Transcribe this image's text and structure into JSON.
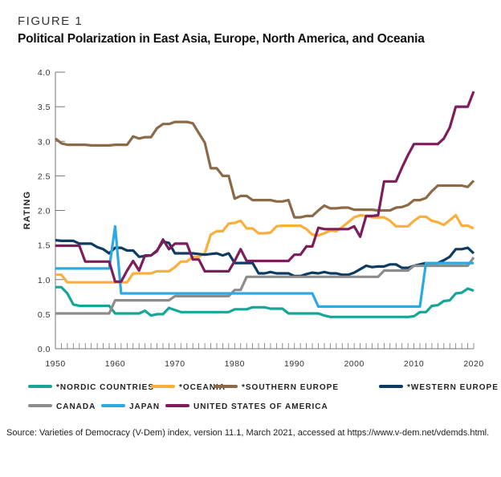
{
  "figure_label": "FIGURE 1",
  "chart_data": {
    "type": "line",
    "title": "Political Polarization in East Asia, Europe, North America, and Oceania",
    "xlabel": "",
    "ylabel": "RATING",
    "xlim": [
      1950,
      2020
    ],
    "ylim": [
      0,
      4
    ],
    "x_ticks": [
      1950,
      1960,
      1970,
      1980,
      1990,
      2000,
      2010,
      2020
    ],
    "x_tick_labels": [
      "1950",
      "1960",
      "1970",
      "1980",
      "1990",
      "2000",
      "2010",
      "2020"
    ],
    "y_ticks": [
      0,
      0.5,
      1,
      1.5,
      2,
      2.5,
      3,
      3.5,
      4
    ],
    "y_tick_labels": [
      "0.0",
      "0.5",
      "1.0",
      "1.5",
      "2.0",
      "2.5",
      "3.0",
      "3.5",
      "4.0"
    ],
    "grid": false,
    "legend_placement": "bottom",
    "x_start": 1950,
    "series": [
      {
        "name": "*NORDIC COUNTRIES",
        "color": "#17a598",
        "values": [
          0.89,
          0.89,
          0.8,
          0.64,
          0.62,
          0.62,
          0.62,
          0.62,
          0.62,
          0.62,
          0.51,
          0.51,
          0.51,
          0.51,
          0.51,
          0.55,
          0.48,
          0.5,
          0.5,
          0.59,
          0.56,
          0.53,
          0.53,
          0.53,
          0.53,
          0.53,
          0.53,
          0.53,
          0.53,
          0.53,
          0.57,
          0.57,
          0.57,
          0.6,
          0.6,
          0.6,
          0.58,
          0.58,
          0.58,
          0.51,
          0.51,
          0.51,
          0.51,
          0.51,
          0.51,
          0.48,
          0.46,
          0.46,
          0.46,
          0.46,
          0.46,
          0.46,
          0.46,
          0.46,
          0.46,
          0.46,
          0.46,
          0.46,
          0.46,
          0.46,
          0.47,
          0.53,
          0.53,
          0.62,
          0.63,
          0.69,
          0.7,
          0.8,
          0.81,
          0.87,
          0.84
        ]
      },
      {
        "name": "*OCEANIA",
        "color": "#fbae3c",
        "values": [
          1.07,
          1.07,
          0.96,
          0.96,
          0.96,
          0.96,
          0.96,
          0.96,
          0.96,
          0.96,
          0.96,
          0.96,
          0.96,
          1.09,
          1.09,
          1.09,
          1.09,
          1.12,
          1.12,
          1.12,
          1.18,
          1.26,
          1.26,
          1.33,
          1.33,
          1.38,
          1.65,
          1.7,
          1.7,
          1.81,
          1.82,
          1.85,
          1.74,
          1.74,
          1.67,
          1.67,
          1.68,
          1.77,
          1.78,
          1.78,
          1.78,
          1.78,
          1.73,
          1.65,
          1.64,
          1.67,
          1.71,
          1.7,
          1.76,
          1.83,
          1.9,
          1.93,
          1.92,
          1.9,
          1.9,
          1.9,
          1.85,
          1.77,
          1.77,
          1.77,
          1.85,
          1.91,
          1.91,
          1.85,
          1.83,
          1.79,
          1.86,
          1.93,
          1.78,
          1.78,
          1.74
        ]
      },
      {
        "name": "*SOUTHERN EUROPE",
        "color": "#8b6a47",
        "values": [
          3.04,
          2.97,
          2.95,
          2.95,
          2.95,
          2.95,
          2.94,
          2.94,
          2.94,
          2.94,
          2.95,
          2.95,
          2.95,
          3.07,
          3.04,
          3.06,
          3.06,
          3.19,
          3.25,
          3.25,
          3.28,
          3.28,
          3.28,
          3.26,
          3.12,
          2.98,
          2.61,
          2.61,
          2.5,
          2.5,
          2.17,
          2.21,
          2.21,
          2.15,
          2.15,
          2.15,
          2.15,
          2.13,
          2.13,
          2.15,
          1.9,
          1.9,
          1.92,
          1.92,
          2.0,
          2.07,
          2.03,
          2.03,
          2.04,
          2.04,
          2.01,
          2.01,
          2.01,
          2.01,
          2.0,
          2.0,
          2.0,
          2.04,
          2.05,
          2.08,
          2.15,
          2.15,
          2.18,
          2.28,
          2.36,
          2.36,
          2.36,
          2.36,
          2.36,
          2.34,
          2.43
        ]
      },
      {
        "name": "*WESTERN EUROPE",
        "color": "#0d3b62",
        "values": [
          1.57,
          1.56,
          1.56,
          1.56,
          1.52,
          1.52,
          1.52,
          1.47,
          1.44,
          1.38,
          1.46,
          1.46,
          1.42,
          1.42,
          1.33,
          1.34,
          1.35,
          1.42,
          1.55,
          1.53,
          1.38,
          1.38,
          1.38,
          1.38,
          1.37,
          1.36,
          1.37,
          1.38,
          1.35,
          1.38,
          1.24,
          1.24,
          1.24,
          1.24,
          1.09,
          1.09,
          1.11,
          1.09,
          1.09,
          1.09,
          1.05,
          1.05,
          1.08,
          1.1,
          1.09,
          1.11,
          1.09,
          1.09,
          1.07,
          1.07,
          1.1,
          1.15,
          1.2,
          1.18,
          1.19,
          1.19,
          1.22,
          1.22,
          1.17,
          1.17,
          1.2,
          1.22,
          1.24,
          1.24,
          1.24,
          1.28,
          1.33,
          1.44,
          1.44,
          1.46,
          1.38
        ]
      },
      {
        "name": "CANADA",
        "color": "#8c8c8c",
        "values": [
          0.51,
          0.51,
          0.51,
          0.51,
          0.51,
          0.51,
          0.51,
          0.51,
          0.51,
          0.51,
          0.7,
          0.7,
          0.7,
          0.7,
          0.7,
          0.7,
          0.7,
          0.7,
          0.7,
          0.7,
          0.76,
          0.76,
          0.76,
          0.76,
          0.76,
          0.76,
          0.76,
          0.76,
          0.76,
          0.76,
          0.85,
          0.85,
          1.04,
          1.04,
          1.04,
          1.04,
          1.04,
          1.04,
          1.04,
          1.04,
          1.04,
          1.04,
          1.04,
          1.04,
          1.04,
          1.04,
          1.04,
          1.04,
          1.04,
          1.04,
          1.04,
          1.04,
          1.04,
          1.04,
          1.04,
          1.13,
          1.13,
          1.13,
          1.13,
          1.13,
          1.2,
          1.2,
          1.2,
          1.2,
          1.2,
          1.2,
          1.2,
          1.2,
          1.2,
          1.2,
          1.32
        ]
      },
      {
        "name": "JAPAN",
        "color": "#29abe2",
        "values": [
          1.16,
          1.16,
          1.16,
          1.16,
          1.16,
          1.16,
          1.16,
          1.16,
          1.16,
          1.16,
          1.77,
          0.8,
          0.8,
          0.8,
          0.8,
          0.8,
          0.8,
          0.8,
          0.8,
          0.8,
          0.8,
          0.8,
          0.8,
          0.8,
          0.8,
          0.8,
          0.8,
          0.8,
          0.8,
          0.8,
          0.8,
          0.8,
          0.8,
          0.8,
          0.8,
          0.8,
          0.8,
          0.8,
          0.8,
          0.8,
          0.8,
          0.8,
          0.8,
          0.8,
          0.61,
          0.61,
          0.61,
          0.61,
          0.61,
          0.61,
          0.61,
          0.61,
          0.61,
          0.61,
          0.61,
          0.61,
          0.61,
          0.61,
          0.61,
          0.61,
          0.61,
          0.61,
          1.24,
          1.24,
          1.24,
          1.24,
          1.24,
          1.24,
          1.24,
          1.24,
          1.24
        ]
      },
      {
        "name": "UNITED STATES OF AMERICA",
        "color": "#7d1d5c",
        "values": [
          1.49,
          1.49,
          1.49,
          1.49,
          1.49,
          1.26,
          1.26,
          1.26,
          1.26,
          1.26,
          0.97,
          0.97,
          1.13,
          1.27,
          1.13,
          1.35,
          1.35,
          1.41,
          1.58,
          1.44,
          1.52,
          1.52,
          1.52,
          1.29,
          1.29,
          1.12,
          1.12,
          1.12,
          1.12,
          1.12,
          1.27,
          1.44,
          1.27,
          1.27,
          1.27,
          1.27,
          1.27,
          1.27,
          1.27,
          1.27,
          1.36,
          1.36,
          1.48,
          1.48,
          1.75,
          1.73,
          1.73,
          1.73,
          1.73,
          1.73,
          1.77,
          1.62,
          1.92,
          1.92,
          1.93,
          2.42,
          2.42,
          2.42,
          2.62,
          2.8,
          2.96,
          2.96,
          2.96,
          2.96,
          2.96,
          3.04,
          3.2,
          3.5,
          3.5,
          3.5,
          3.72
        ]
      }
    ]
  },
  "source": "Source: Varieties of Democracy (V-Dem) index, version 11.1, March 2021, accessed at https://www.v-dem.net/vdemds.html."
}
